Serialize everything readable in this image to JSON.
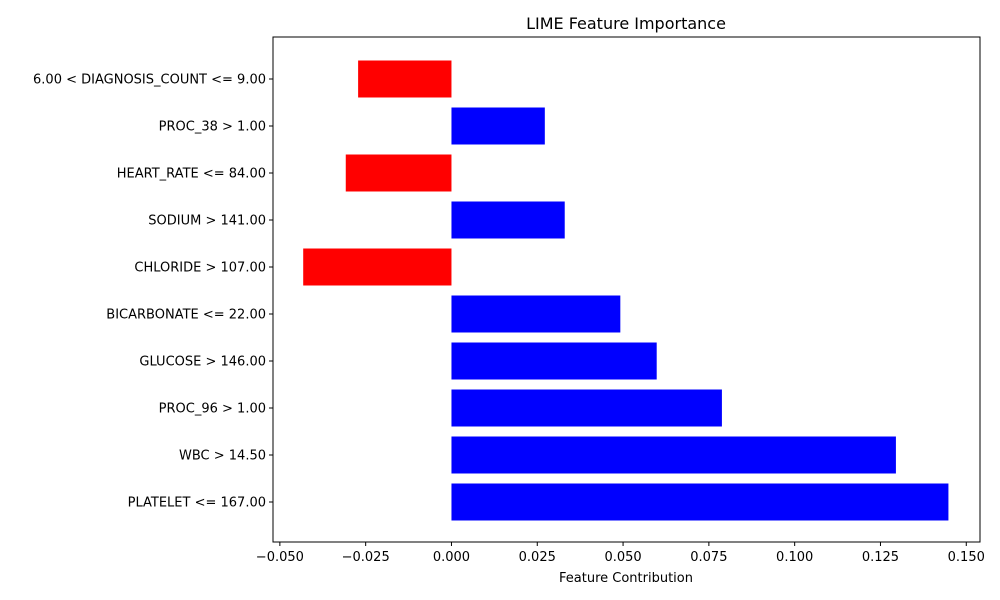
{
  "chart_data": {
    "type": "bar",
    "orientation": "horizontal",
    "title": "LIME Feature Importance",
    "xlabel": "Feature Contribution",
    "ylabel": "",
    "xlim": [
      -0.052,
      0.154
    ],
    "xticks": [
      -0.05,
      -0.025,
      0.0,
      0.025,
      0.05,
      0.075,
      0.1,
      0.125,
      0.15
    ],
    "xtick_labels": [
      "−0.050",
      "−0.025",
      "0.000",
      "0.025",
      "0.050",
      "0.075",
      "0.100",
      "0.125",
      "0.150"
    ],
    "grid": false,
    "legend": "none",
    "colors": {
      "positive": "#0000ff",
      "negative": "#ff0000"
    },
    "categories": [
      "6.00 < DIAGNOSIS_COUNT <= 9.00",
      "PROC_38 > 1.00",
      "HEART_RATE <= 84.00",
      "SODIUM > 141.00",
      "CHLORIDE > 107.00",
      "BICARBONATE <= 22.00",
      "GLUCOSE > 146.00",
      "PROC_96 > 1.00",
      "WBC > 14.50",
      "PLATELET <= 167.00"
    ],
    "values": [
      -0.0272,
      0.0272,
      -0.0308,
      0.033,
      -0.0432,
      0.0492,
      0.0598,
      0.0788,
      0.1295,
      0.1448
    ]
  }
}
